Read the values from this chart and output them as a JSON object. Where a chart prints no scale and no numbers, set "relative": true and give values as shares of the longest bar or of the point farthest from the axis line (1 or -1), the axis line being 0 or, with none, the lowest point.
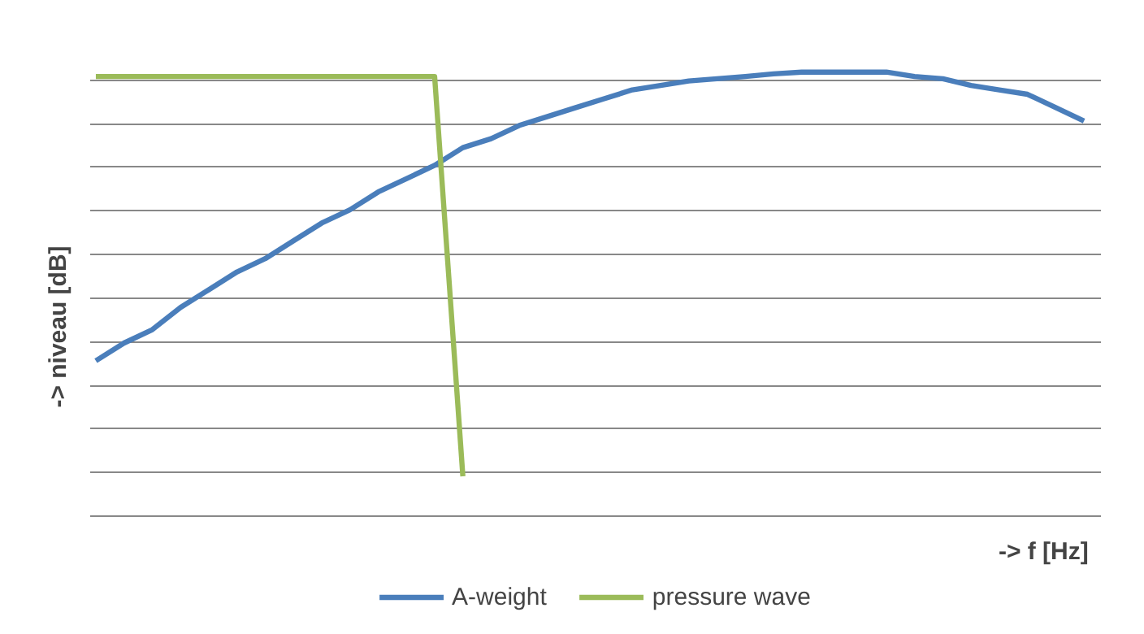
{
  "chart_data": {
    "type": "line",
    "relative": true,
    "xlabel": "->  f [Hz]",
    "ylabel": "-> niveau [dB]",
    "categories": [
      null,
      null,
      null,
      null,
      null,
      null,
      null,
      null,
      null,
      null,
      null,
      null,
      null,
      null,
      null,
      null,
      null,
      null,
      null,
      null,
      null,
      null,
      null,
      null,
      null,
      null,
      null,
      null,
      null,
      null,
      null,
      null,
      null,
      null,
      null,
      null
    ],
    "series": [
      {
        "name": "A-weight",
        "color": "#4a7ebb",
        "values": [
          0.35,
          0.39,
          0.42,
          0.47,
          0.51,
          0.55,
          0.58,
          0.62,
          0.66,
          0.69,
          0.73,
          0.76,
          0.79,
          0.83,
          0.85,
          0.88,
          0.9,
          0.92,
          0.94,
          0.96,
          0.97,
          0.98,
          0.985,
          0.99,
          0.996,
          1,
          1,
          1,
          1,
          0.99,
          0.985,
          0.97,
          0.96,
          0.95,
          0.92,
          0.89
        ]
      },
      {
        "name": "pressure wave",
        "color": "#9bbb59",
        "values": [
          0.99,
          0.99,
          0.99,
          0.99,
          0.99,
          0.99,
          0.99,
          0.99,
          0.99,
          0.99,
          0.99,
          0.99,
          0.99,
          0.09,
          null,
          null,
          null,
          null,
          null,
          null,
          null,
          null,
          null,
          null,
          null,
          null,
          null,
          null,
          null,
          null,
          null,
          null,
          null,
          null,
          null,
          null
        ]
      }
    ],
    "grid": "y",
    "legend": "bottom",
    "marker": "none",
    "line_style": "solid"
  }
}
